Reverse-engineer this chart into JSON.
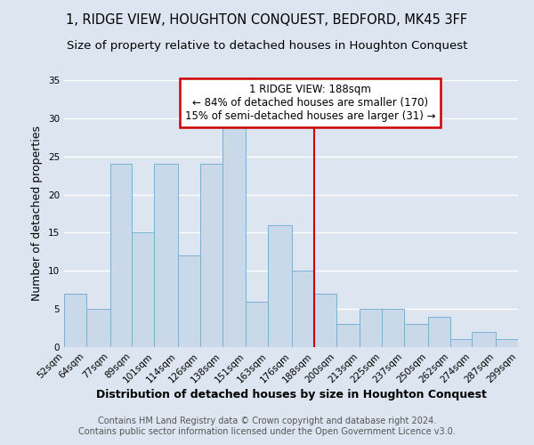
{
  "title": "1, RIDGE VIEW, HOUGHTON CONQUEST, BEDFORD, MK45 3FF",
  "subtitle": "Size of property relative to detached houses in Houghton Conquest",
  "xlabel": "Distribution of detached houses by size in Houghton Conquest",
  "ylabel": "Number of detached properties",
  "bin_labels": [
    "52sqm",
    "64sqm",
    "77sqm",
    "89sqm",
    "101sqm",
    "114sqm",
    "126sqm",
    "138sqm",
    "151sqm",
    "163sqm",
    "176sqm",
    "188sqm",
    "200sqm",
    "213sqm",
    "225sqm",
    "237sqm",
    "250sqm",
    "262sqm",
    "274sqm",
    "287sqm",
    "299sqm"
  ],
  "bin_edges": [
    52,
    64,
    77,
    89,
    101,
    114,
    126,
    138,
    151,
    163,
    176,
    188,
    200,
    213,
    225,
    237,
    250,
    262,
    274,
    287,
    299
  ],
  "values": [
    7,
    5,
    24,
    15,
    24,
    12,
    24,
    29,
    6,
    16,
    10,
    7,
    3,
    5,
    5,
    3,
    4,
    1,
    2,
    1,
    0
  ],
  "bar_color": "#c9d9ea",
  "bar_edge_color": "#7aafd4",
  "ref_line_x": 188,
  "ref_line_color": "#cc0000",
  "annotation_title": "1 RIDGE VIEW: 188sqm",
  "annotation_line1": "← 84% of detached houses are smaller (170)",
  "annotation_line2": "15% of semi-detached houses are larger (31) →",
  "annotation_box_color": "#cc0000",
  "ylim": [
    0,
    35
  ],
  "yticks": [
    0,
    5,
    10,
    15,
    20,
    25,
    30,
    35
  ],
  "footer_line1": "Contains HM Land Registry data © Crown copyright and database right 2024.",
  "footer_line2": "Contains public sector information licensed under the Open Government Licence v3.0.",
  "bg_color": "#dde6f0",
  "plot_bg_color": "#dde6f0",
  "grid_color": "#ffffff",
  "title_fontsize": 10.5,
  "subtitle_fontsize": 9.5,
  "axis_label_fontsize": 9,
  "tick_fontsize": 7.5,
  "footer_fontsize": 7,
  "annotation_fontsize": 8.5
}
